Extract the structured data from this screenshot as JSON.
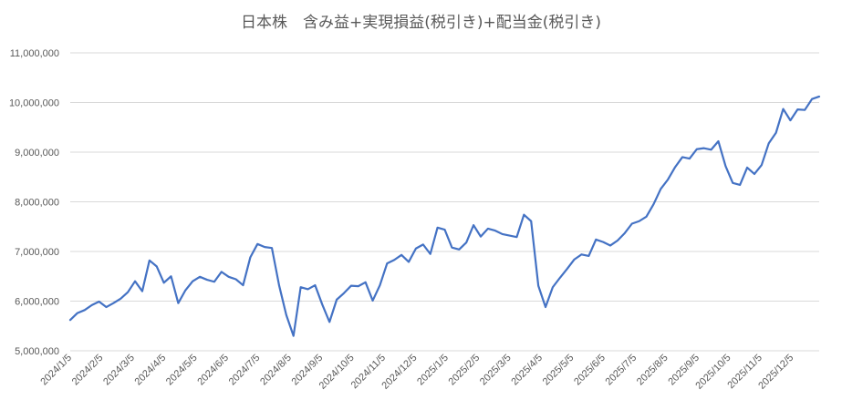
{
  "chart_data": {
    "type": "line",
    "title": "日本株　含み益+実現損益(税引き)+配当金(税引き)",
    "xlabel": "",
    "ylabel": "",
    "ylim": [
      5000000,
      11000000
    ],
    "yticks": [
      "5,000,000",
      "6,000,000",
      "7,000,000",
      "8,000,000",
      "9,000,000",
      "10,000,000",
      "11,000,000"
    ],
    "xticks": [
      "2024/1/5",
      "2024/2/5",
      "2024/3/5",
      "2024/4/5",
      "2024/5/5",
      "2024/6/5",
      "2024/7/5",
      "2024/8/5",
      "2024/9/5",
      "2024/10/5",
      "2024/11/5",
      "2024/12/5",
      "2025/1/5",
      "2025/2/5",
      "2025/3/5",
      "2025/4/5",
      "2025/5/5",
      "2025/6/5",
      "2025/7/5",
      "2025/8/5",
      "2025/9/5",
      "2025/10/5",
      "2025/11/5",
      "2025/12/5"
    ],
    "grid": true,
    "legend": "none",
    "color": "#4472C4",
    "series": [
      {
        "values": [
          5620000,
          5760000,
          5820000,
          5920000,
          5990000,
          5880000,
          5960000,
          6050000,
          6180000,
          6400000,
          6200000,
          6820000,
          6700000,
          6370000,
          6500000,
          5960000,
          6220000,
          6400000,
          6490000,
          6430000,
          6390000,
          6590000,
          6490000,
          6440000,
          6320000,
          6880000,
          7150000,
          7090000,
          7070000,
          6320000,
          5720000,
          5300000,
          6280000,
          6240000,
          6320000,
          5930000,
          5580000,
          6030000,
          6160000,
          6310000,
          6300000,
          6380000,
          6010000,
          6320000,
          6760000,
          6830000,
          6930000,
          6790000,
          7060000,
          7140000,
          6950000,
          7480000,
          7440000,
          7080000,
          7040000,
          7180000,
          7530000,
          7300000,
          7460000,
          7420000,
          7350000,
          7320000,
          7290000,
          7740000,
          7610000,
          6310000,
          5880000,
          6280000,
          6470000,
          6650000,
          6840000,
          6940000,
          6910000,
          7240000,
          7190000,
          7120000,
          7220000,
          7370000,
          7560000,
          7610000,
          7700000,
          7950000,
          8260000,
          8450000,
          8700000,
          8900000,
          8870000,
          9060000,
          9080000,
          9050000,
          9220000,
          8720000,
          8380000,
          8340000,
          8690000,
          8560000,
          8740000,
          9180000,
          9390000,
          9870000,
          9640000,
          9860000,
          9850000,
          10070000,
          10120000
        ]
      }
    ]
  }
}
